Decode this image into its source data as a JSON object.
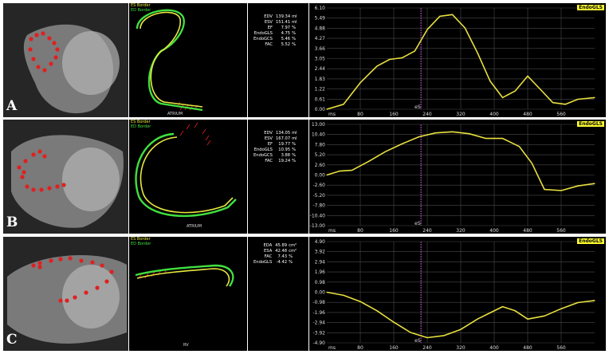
{
  "panels": [
    {
      "letter": "A",
      "legend": {
        "es": "ES Border",
        "ed": "ED Border"
      },
      "contour_label": "ATRIUM",
      "stats": [
        {
          "k": "EDV",
          "v": "139.34",
          "u": "ml"
        },
        {
          "k": "ESV",
          "v": "151.41",
          "u": "ml"
        },
        {
          "k": "EF",
          "v": "7.97",
          "u": "%"
        },
        {
          "k": "EndoGLS",
          "v": "4.75",
          "u": "%"
        },
        {
          "k": "EndoGCS",
          "v": "5.46",
          "u": "%"
        },
        {
          "k": "FAC",
          "v": "5.52",
          "u": "%"
        }
      ],
      "chart_data": {
        "type": "line",
        "tag": "EndoGLS",
        "xlabel_unit": "ms",
        "x_ticks": [
          "80",
          "160",
          "240",
          "320",
          "400",
          "480",
          "560"
        ],
        "y_ticks": [
          "6.10",
          "5.49",
          "4.88",
          "4.27",
          "3.66",
          "3.05",
          "2.44",
          "1.83",
          "1.22",
          "0.61",
          "0.00"
        ],
        "ylim": [
          0,
          6.1
        ],
        "xlim": [
          0,
          640
        ],
        "es_marker": {
          "label": "eS",
          "x": 225
        },
        "series": [
          {
            "x": [
              0,
              40,
              80,
              120,
              150,
              180,
              210,
              240,
              270,
              300,
              330,
              360,
              390,
              420,
              450,
              480,
              510,
              540,
              570,
              600,
              640
            ],
            "values": [
              0,
              0.3,
              1.6,
              2.6,
              3.0,
              3.1,
              3.5,
              4.8,
              5.6,
              5.7,
              4.9,
              3.4,
              1.7,
              0.7,
              1.1,
              2.0,
              1.2,
              0.4,
              0.3,
              0.6,
              0.7
            ]
          }
        ]
      }
    },
    {
      "letter": "B",
      "legend": {
        "es": "ES Border",
        "ed": "ED Border"
      },
      "contour_label": "ATRIUM",
      "stats": [
        {
          "k": "EDV",
          "v": "134.05",
          "u": "ml"
        },
        {
          "k": "ESV",
          "v": "167.07",
          "u": "ml"
        },
        {
          "k": "EF",
          "v": "19.77",
          "u": "%"
        },
        {
          "k": "EndoGLS",
          "v": "10.95",
          "u": "%"
        },
        {
          "k": "EndoGCS",
          "v": "3.88",
          "u": "%"
        },
        {
          "k": "FAC",
          "v": "19.24",
          "u": "%"
        }
      ],
      "chart_data": {
        "type": "line",
        "tag": "EndoGLS",
        "xlabel_unit": "ms",
        "x_ticks": [
          "80",
          "160",
          "240",
          "320",
          "400",
          "480",
          "560"
        ],
        "y_ticks": [
          "13.00",
          "10.40",
          "7.80",
          "5.20",
          "2.60",
          "0.00",
          "-2.60",
          "-5.20",
          "-7.80",
          "-10.40",
          "-13.00"
        ],
        "ylim": [
          -13,
          13
        ],
        "xlim": [
          0,
          640
        ],
        "es_marker": {
          "label": "eS",
          "x": 225
        },
        "series": [
          {
            "x": [
              0,
              30,
              60,
              100,
              140,
              180,
              220,
              260,
              300,
              340,
              380,
              420,
              460,
              490,
              520,
              560,
              600,
              640
            ],
            "values": [
              0,
              1,
              1.2,
              3.5,
              6,
              8,
              9.8,
              10.8,
              11.1,
              10.6,
              9.4,
              9.4,
              7.3,
              3,
              -3.7,
              -4,
              -2.8,
              -2.2
            ]
          }
        ]
      }
    },
    {
      "letter": "C",
      "legend": {
        "es": "ES Border",
        "ed": "ED Border"
      },
      "contour_label": "RV",
      "stats": [
        {
          "k": "EDA",
          "v": "45.89",
          "u": "cm²"
        },
        {
          "k": "ESA",
          "v": "42.48",
          "u": "cm²"
        },
        {
          "k": "FAC",
          "v": "7.43",
          "u": "%"
        },
        {
          "k": "EndoGLS",
          "v": "-4.42",
          "u": "%"
        }
      ],
      "chart_data": {
        "type": "line",
        "tag": "EndoGLS",
        "xlabel_unit": "ms",
        "x_ticks": [
          "80",
          "160",
          "240",
          "320",
          "400",
          "480",
          "560"
        ],
        "y_ticks": [
          "4.90",
          "3.92",
          "2.94",
          "1.96",
          "0.98",
          "0.00",
          "-0.98",
          "-1.96",
          "-2.94",
          "-3.92",
          "-4.90"
        ],
        "ylim": [
          -4.9,
          4.9
        ],
        "xlim": [
          0,
          640
        ],
        "es_marker": {
          "label": "eS",
          "x": 225
        },
        "series": [
          {
            "x": [
              0,
              40,
              80,
              120,
              160,
              200,
              240,
              280,
              320,
              360,
              390,
              420,
              450,
              480,
              520,
              560,
              600,
              640
            ],
            "values": [
              0,
              -0.3,
              -0.9,
              -1.8,
              -2.9,
              -3.9,
              -4.4,
              -4.2,
              -3.6,
              -2.6,
              -2.0,
              -1.4,
              -1.8,
              -2.6,
              -2.3,
              -1.6,
              -1.0,
              -0.8
            ]
          }
        ]
      }
    }
  ],
  "colors": {
    "curve": "#e8e040",
    "es_line": "#d060e0",
    "grid": "#4a4a4a",
    "ed_contour": "#40e040",
    "es_contour": "#e8e840",
    "dots": "#e02020"
  }
}
